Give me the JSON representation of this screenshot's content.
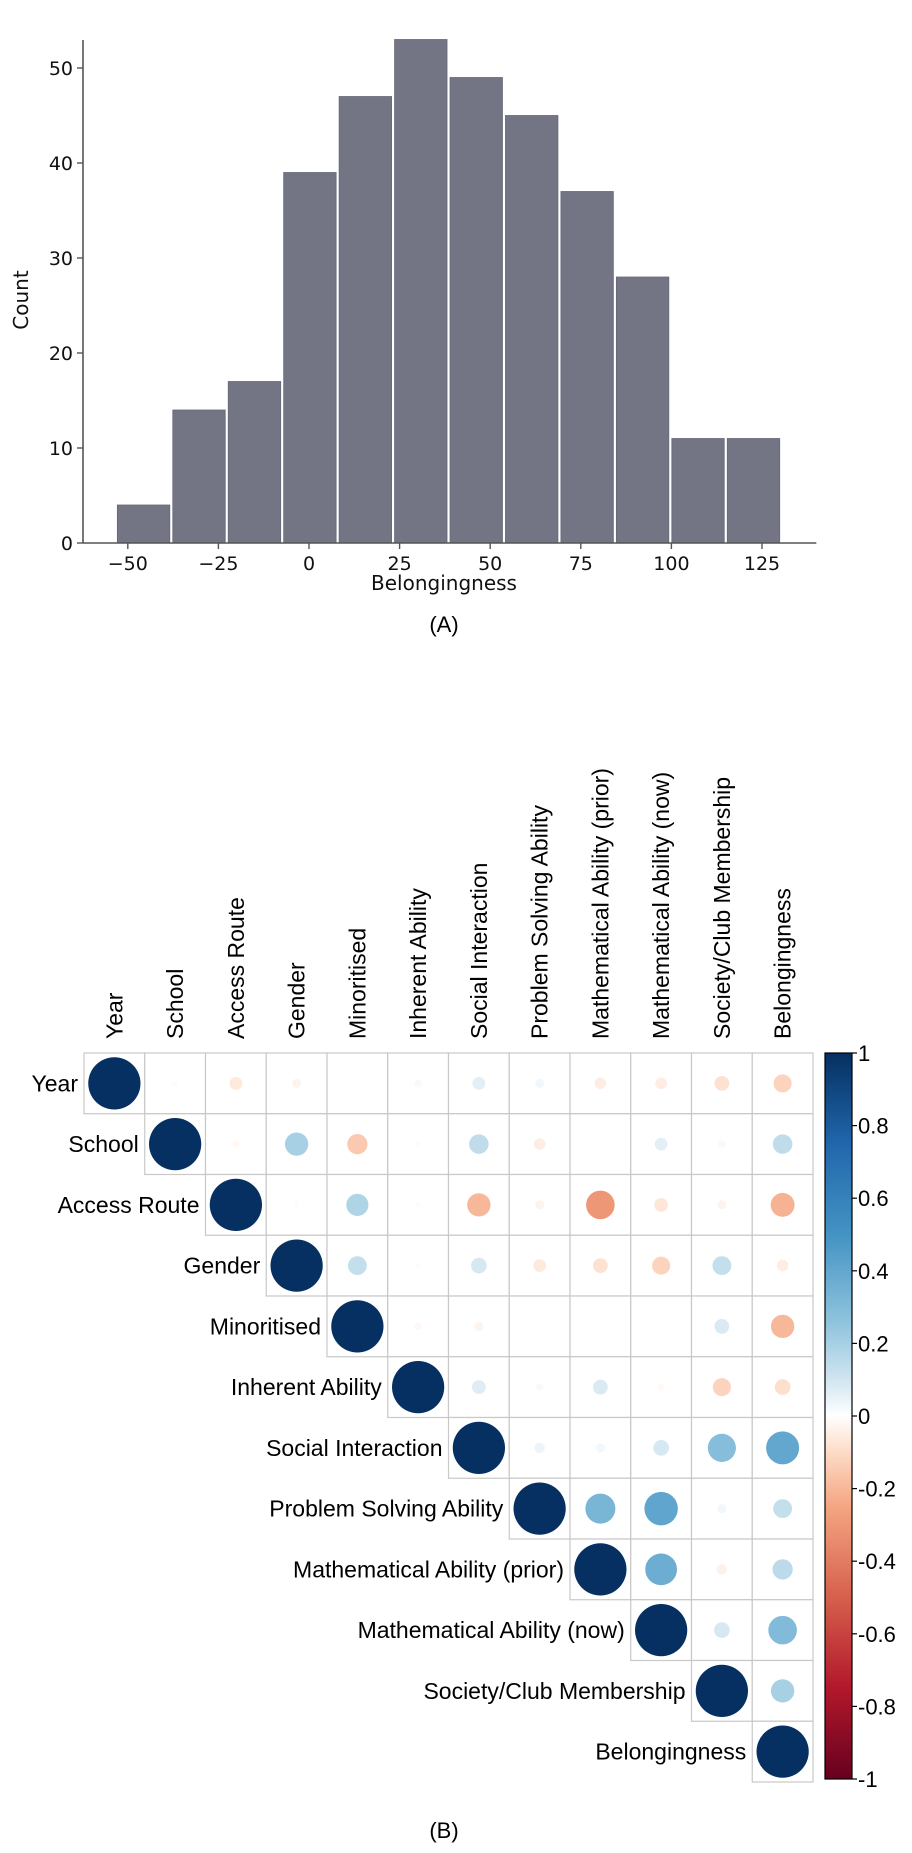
{
  "chart_data": [
    {
      "type": "bar",
      "panel_label": "(A)",
      "title": "",
      "xlabel": "Belongingness",
      "ylabel": "Count",
      "bin_edges": [
        -53.3,
        -38.0,
        -22.7,
        -7.4,
        7.9,
        23.2,
        38.5,
        53.8,
        69.1,
        84.4,
        99.7,
        115.0,
        130.3
      ],
      "values": [
        4,
        14,
        17,
        39,
        47,
        53,
        49,
        45,
        37,
        28,
        11,
        11
      ],
      "xlim": [
        -60,
        140
      ],
      "ylim": [
        0,
        55.5
      ],
      "xticks": [
        -50,
        -25,
        0,
        25,
        50,
        75,
        100,
        125
      ],
      "xtick_labels": [
        "−50",
        "−25",
        "0",
        "25",
        "50",
        "75",
        "100",
        "125"
      ],
      "yticks": [
        0,
        10,
        20,
        30,
        40,
        50
      ],
      "ytick_labels": [
        "0",
        "10",
        "20",
        "30",
        "40",
        "50"
      ],
      "bar_color": "#737584",
      "grid": false
    },
    {
      "type": "heatmap",
      "style": "correlation-circles-upper",
      "panel_label": "(B)",
      "variables": [
        "Year",
        "School",
        "Access Route",
        "Gender",
        "Minoritised",
        "Inherent Ability",
        "Social Interaction",
        "Problem Solving Ability",
        "Mathematical Ability (prior)",
        "Mathematical Ability (now)",
        "Society/Club Membership",
        "Belongingness"
      ],
      "matrix": [
        [
          1,
          0.01,
          -0.06,
          -0.03,
          0.0,
          0.02,
          0.06,
          0.03,
          -0.05,
          -0.05,
          -0.08,
          -0.12
        ],
        [
          null,
          1,
          -0.02,
          0.2,
          -0.15,
          0.01,
          0.14,
          -0.05,
          0.0,
          0.06,
          0.02,
          0.14
        ],
        [
          null,
          null,
          1,
          0.01,
          0.18,
          0.01,
          -0.2,
          -0.03,
          -0.3,
          -0.07,
          -0.03,
          -0.21
        ],
        [
          null,
          null,
          null,
          1,
          0.13,
          0.01,
          0.09,
          -0.06,
          -0.08,
          -0.12,
          0.13,
          -0.05
        ],
        [
          null,
          null,
          null,
          null,
          1,
          -0.02,
          -0.03,
          0.0,
          0.0,
          0.0,
          0.08,
          -0.2
        ],
        [
          null,
          null,
          null,
          null,
          null,
          1,
          0.07,
          0.02,
          0.08,
          -0.02,
          -0.12,
          -0.09
        ],
        [
          null,
          null,
          null,
          null,
          null,
          null,
          1,
          0.04,
          0.03,
          0.09,
          0.29,
          0.4
        ],
        [
          null,
          null,
          null,
          null,
          null,
          null,
          null,
          1,
          0.33,
          0.41,
          0.03,
          0.13
        ],
        [
          null,
          null,
          null,
          null,
          null,
          null,
          null,
          null,
          1,
          0.37,
          -0.04,
          0.15
        ],
        [
          null,
          null,
          null,
          null,
          null,
          null,
          null,
          null,
          null,
          1,
          0.09,
          0.3
        ],
        [
          null,
          null,
          null,
          null,
          null,
          null,
          null,
          null,
          null,
          null,
          1,
          0.2
        ],
        [
          null,
          null,
          null,
          null,
          null,
          null,
          null,
          null,
          null,
          null,
          null,
          1
        ]
      ],
      "colorbar": {
        "range": [
          -1,
          1
        ],
        "ticks": [
          1,
          0.8,
          0.6,
          0.4,
          0.2,
          0,
          -0.2,
          -0.4,
          -0.6,
          -0.8,
          -1
        ],
        "tick_labels": [
          "1",
          "0.8",
          "0.6",
          "0.4",
          "0.2",
          "0",
          "-0.2",
          "-0.4",
          "-0.6",
          "-0.8",
          "-1"
        ],
        "colormap_stops": [
          {
            "value": -1,
            "color": "#67001f"
          },
          {
            "value": -0.75,
            "color": "#b2182b"
          },
          {
            "value": -0.5,
            "color": "#d6604d"
          },
          {
            "value": -0.25,
            "color": "#f4a582"
          },
          {
            "value": -0.1,
            "color": "#fddbc7"
          },
          {
            "value": 0,
            "color": "#ffffff"
          },
          {
            "value": 0.1,
            "color": "#d1e5f0"
          },
          {
            "value": 0.25,
            "color": "#92c5de"
          },
          {
            "value": 0.5,
            "color": "#4393c3"
          },
          {
            "value": 0.75,
            "color": "#2166ac"
          },
          {
            "value": 1,
            "color": "#053061"
          }
        ]
      },
      "grid_color": "#c8c8c8"
    }
  ]
}
